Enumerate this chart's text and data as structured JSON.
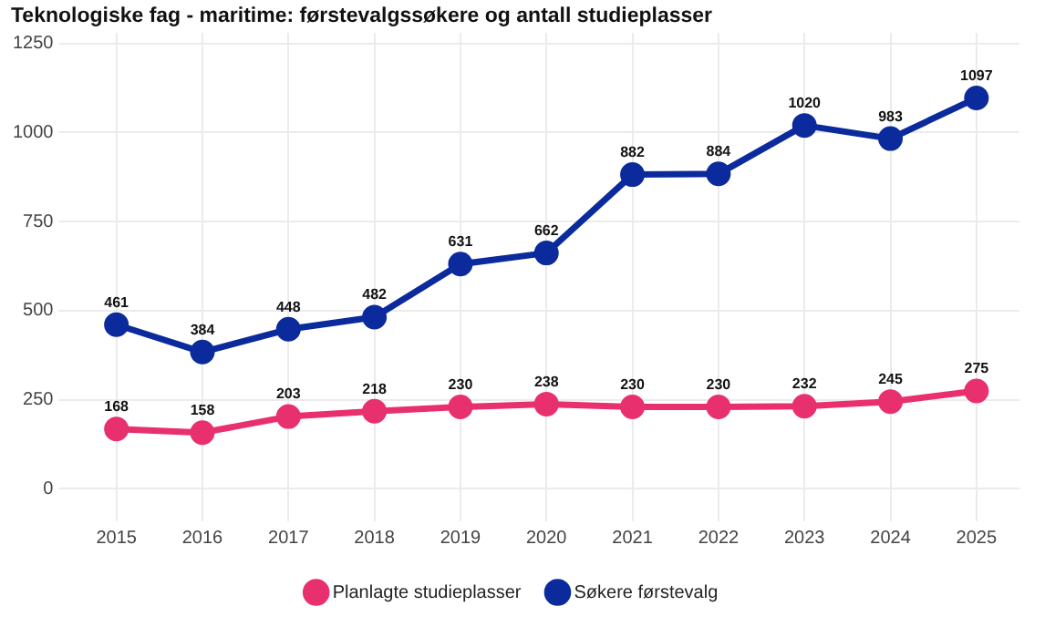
{
  "chart_data": {
    "type": "line",
    "title": "Teknologiske fag - maritime: førstevalgssøkere og antall studieplasser",
    "categories": [
      "2015",
      "2016",
      "2017",
      "2018",
      "2019",
      "2020",
      "2021",
      "2022",
      "2023",
      "2024",
      "2025"
    ],
    "series": [
      {
        "name": "Planlagte studieplasser",
        "color": "#e8306e",
        "values": [
          168,
          158,
          203,
          218,
          230,
          238,
          230,
          230,
          232,
          245,
          275
        ]
      },
      {
        "name": "Søkere førstevalg",
        "color": "#0b2a9c",
        "values": [
          461,
          384,
          448,
          482,
          631,
          662,
          882,
          884,
          1020,
          983,
          1097
        ]
      }
    ],
    "ylim": [
      -50,
      1280
    ],
    "yticks": [
      0,
      250,
      500,
      750,
      1000,
      1250
    ],
    "grid": true,
    "legend": "bottom",
    "marker": "circle",
    "line_style": "solid",
    "data_labels": true
  }
}
